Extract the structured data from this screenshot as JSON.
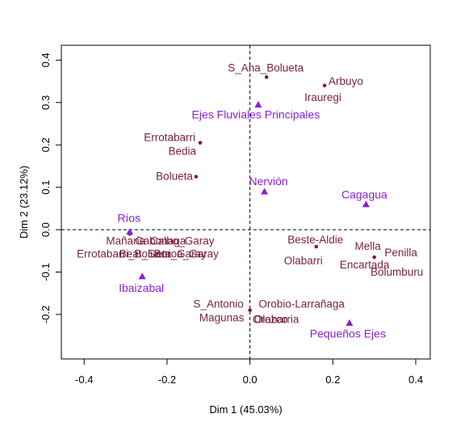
{
  "chart_data": {
    "type": "scatter",
    "title": "",
    "xlabel": "Dim 1 (45.03%)",
    "ylabel": "Dim 2 (23.12%)",
    "xlim": [
      -0.455,
      0.435
    ],
    "ylim": [
      -0.305,
      0.435
    ],
    "xticks": [
      -0.4,
      -0.2,
      0.0,
      0.2,
      0.4
    ],
    "yticks": [
      -0.2,
      -0.1,
      0.0,
      0.1,
      0.2,
      0.3,
      0.4
    ],
    "xtick_labels": [
      "-0.4",
      "-0.2",
      "0.0",
      "0.2",
      "0.4"
    ],
    "ytick_labels": [
      "-0.2",
      "-0.1",
      "0.0",
      "0.1",
      "0.2",
      "0.3",
      "0.4"
    ],
    "reference_lines": {
      "x": 0,
      "y": 0,
      "style": "dashed"
    },
    "colors": {
      "rows": "#7a1f3d",
      "cols": "#8b1ed6"
    },
    "series": [
      {
        "marker": "circle",
        "color": "#7a1f3d",
        "points": [
          {
            "x": 0.04,
            "y": 0.36,
            "labels": [
              "S_Ana_Bolueta"
            ]
          },
          {
            "x": 0.18,
            "y": 0.34,
            "labels": [
              "Arbuyo",
              "Irauregi"
            ]
          },
          {
            "x": -0.12,
            "y": 0.205,
            "labels": [
              "Errotabarri",
              "Bedia"
            ]
          },
          {
            "x": -0.13,
            "y": 0.125,
            "labels": [
              "Bolueta"
            ]
          },
          {
            "x": -0.29,
            "y": -0.01,
            "labels": [
              "Mañaria",
              "Gabonaga",
              "Calbo_Garay",
              "Errotabarri_Bolueta",
              "Beat_Sarri_Garay",
              "Boroa_Garay"
            ]
          },
          {
            "x": 0.16,
            "y": -0.04,
            "labels": [
              "Beste-Aldie",
              "Olabarri"
            ]
          },
          {
            "x": 0.3,
            "y": -0.065,
            "labels": [
              "Mella",
              "Penilla",
              "Encartada",
              "Bolumburu"
            ]
          },
          {
            "x": 0.0,
            "y": -0.19,
            "labels": [
              "S_Antonio",
              "Orobio-Larrañaga",
              "Magunas",
              "Orozco",
              "Olabarria"
            ]
          }
        ]
      },
      {
        "marker": "triangle",
        "color": "#8b1ed6",
        "points": [
          {
            "x": 0.02,
            "y": 0.295,
            "labels": [
              "Ejes Fluviales Principales"
            ]
          },
          {
            "x": 0.035,
            "y": 0.09,
            "labels": [
              "Nervión"
            ]
          },
          {
            "x": 0.28,
            "y": 0.06,
            "labels": [
              "Cagagua"
            ]
          },
          {
            "x": -0.29,
            "y": -0.005,
            "labels": [
              "Ríos"
            ]
          },
          {
            "x": -0.26,
            "y": -0.11,
            "labels": [
              "Ibaizabal"
            ]
          },
          {
            "x": 0.24,
            "y": -0.22,
            "labels": [
              "Pequeños Ejes"
            ]
          }
        ]
      }
    ]
  }
}
